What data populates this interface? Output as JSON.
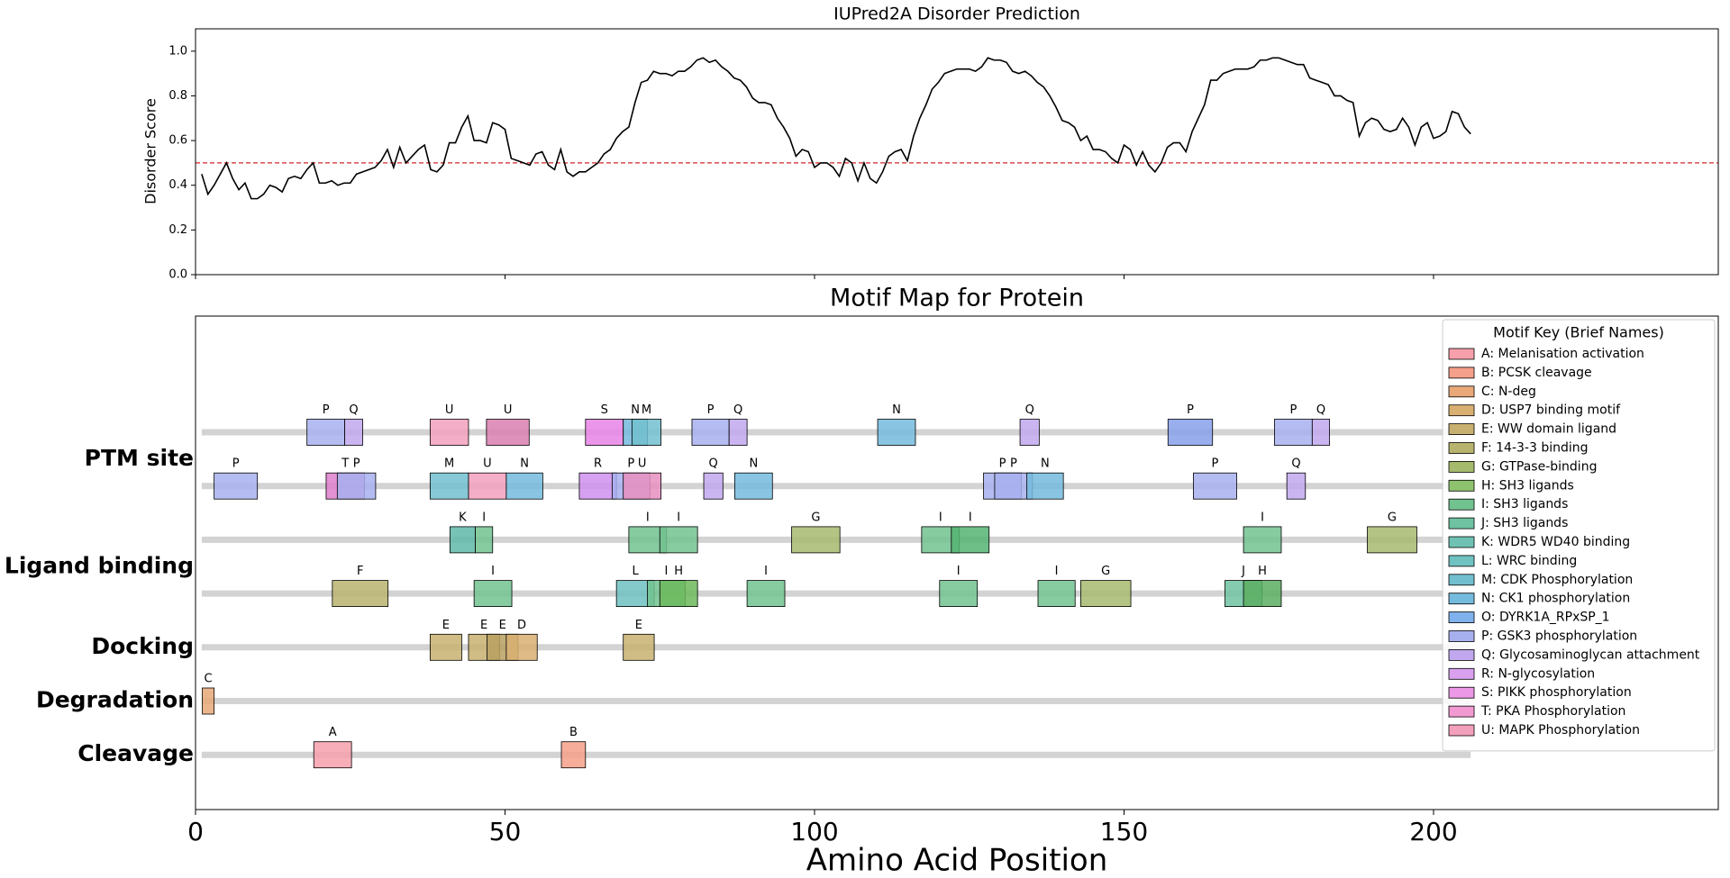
{
  "chart_data": [
    {
      "type": "line",
      "title": "IUPred2A Disorder Prediction",
      "y_label": "Disorder Score",
      "color": "#000000",
      "hline": 0.5,
      "hline_color": "#d62728",
      "xlim": [
        0,
        246
      ],
      "xticks": [
        0,
        50,
        100,
        150,
        200
      ],
      "ylim": [
        0,
        1.1
      ],
      "yticks": [
        {
          "value": 0,
          "label": "0.0"
        },
        {
          "value": 0.2,
          "label": "0.2"
        },
        {
          "value": 0.4,
          "label": "0.4"
        },
        {
          "value": 0.6,
          "label": "0.6"
        },
        {
          "value": 0.8,
          "label": "0.8"
        },
        {
          "value": 1,
          "label": "1.0"
        }
      ],
      "x": [
        1,
        2,
        3,
        4,
        5,
        6,
        7,
        8,
        9,
        10,
        11,
        12,
        13,
        14,
        15,
        16,
        17,
        18,
        19,
        20,
        21,
        22,
        23,
        24,
        25,
        26,
        27,
        28,
        29,
        30,
        31,
        32,
        33,
        34,
        35,
        36,
        37,
        38,
        39,
        40,
        41,
        42,
        43,
        44,
        45,
        46,
        47,
        48,
        49,
        50,
        51,
        52,
        53,
        54,
        55,
        56,
        57,
        58,
        59,
        60,
        61,
        62,
        63,
        64,
        65,
        66,
        67,
        68,
        69,
        70,
        71,
        72,
        73,
        74,
        75,
        76,
        77,
        78,
        79,
        80,
        81,
        82,
        83,
        84,
        85,
        86,
        87,
        88,
        89,
        90,
        91,
        92,
        93,
        94,
        95,
        96,
        97,
        98,
        99,
        100,
        101,
        102,
        103,
        104,
        105,
        106,
        107,
        108,
        109,
        110,
        111,
        112,
        113,
        114,
        115,
        116,
        117,
        118,
        119,
        120,
        121,
        122,
        123,
        124,
        125,
        126,
        127,
        128,
        129,
        130,
        131,
        132,
        133,
        134,
        135,
        136,
        137,
        138,
        139,
        140,
        141,
        142,
        143,
        144,
        145,
        146,
        147,
        148,
        149,
        150,
        151,
        152,
        153,
        154,
        155,
        156,
        157,
        158,
        159,
        160,
        161,
        162,
        163,
        164,
        165,
        166,
        167,
        168,
        169,
        170,
        171,
        172,
        173,
        174,
        175,
        176,
        177,
        178,
        179,
        180,
        181,
        182,
        183,
        184,
        185,
        186,
        187,
        188,
        189,
        190,
        191,
        192,
        193,
        194,
        195,
        196,
        197,
        198,
        199,
        200,
        201,
        202,
        203,
        204,
        205,
        206
      ],
      "values": [
        0.45,
        0.36,
        0.4,
        0.45,
        0.5,
        0.43,
        0.38,
        0.41,
        0.34,
        0.34,
        0.36,
        0.4,
        0.39,
        0.37,
        0.43,
        0.44,
        0.43,
        0.47,
        0.5,
        0.41,
        0.41,
        0.42,
        0.4,
        0.41,
        0.41,
        0.45,
        0.46,
        0.47,
        0.48,
        0.51,
        0.56,
        0.48,
        0.57,
        0.5,
        0.53,
        0.56,
        0.58,
        0.47,
        0.46,
        0.49,
        0.59,
        0.59,
        0.66,
        0.71,
        0.6,
        0.6,
        0.59,
        0.68,
        0.67,
        0.65,
        0.52,
        0.51,
        0.5,
        0.49,
        0.54,
        0.55,
        0.49,
        0.47,
        0.56,
        0.46,
        0.44,
        0.46,
        0.46,
        0.48,
        0.5,
        0.54,
        0.56,
        0.61,
        0.64,
        0.66,
        0.77,
        0.86,
        0.87,
        0.91,
        0.9,
        0.9,
        0.89,
        0.91,
        0.91,
        0.93,
        0.96,
        0.97,
        0.95,
        0.96,
        0.93,
        0.91,
        0.88,
        0.87,
        0.84,
        0.79,
        0.77,
        0.77,
        0.76,
        0.7,
        0.66,
        0.61,
        0.53,
        0.56,
        0.55,
        0.48,
        0.5,
        0.5,
        0.48,
        0.44,
        0.52,
        0.5,
        0.42,
        0.5,
        0.43,
        0.41,
        0.46,
        0.53,
        0.55,
        0.56,
        0.51,
        0.62,
        0.7,
        0.76,
        0.83,
        0.86,
        0.9,
        0.91,
        0.92,
        0.92,
        0.92,
        0.91,
        0.93,
        0.97,
        0.96,
        0.96,
        0.95,
        0.91,
        0.9,
        0.91,
        0.89,
        0.86,
        0.84,
        0.8,
        0.75,
        0.69,
        0.68,
        0.66,
        0.6,
        0.62,
        0.56,
        0.56,
        0.55,
        0.52,
        0.5,
        0.58,
        0.56,
        0.49,
        0.55,
        0.49,
        0.46,
        0.5,
        0.57,
        0.59,
        0.59,
        0.55,
        0.64,
        0.7,
        0.76,
        0.87,
        0.87,
        0.9,
        0.91,
        0.92,
        0.92,
        0.92,
        0.93,
        0.96,
        0.96,
        0.97,
        0.97,
        0.96,
        0.95,
        0.94,
        0.94,
        0.88,
        0.87,
        0.86,
        0.85,
        0.8,
        0.8,
        0.78,
        0.77,
        0.62,
        0.68,
        0.7,
        0.69,
        0.65,
        0.64,
        0.65,
        0.7,
        0.66,
        0.58,
        0.66,
        0.68,
        0.61,
        0.62,
        0.64,
        0.73,
        0.72,
        0.66,
        0.63
      ]
    },
    {
      "type": "motif_map",
      "title": "Motif Map for Protein",
      "x_label": "Amino Acid Position",
      "xlim": [
        0,
        246
      ],
      "xticks": [
        0,
        50,
        100,
        150,
        200
      ],
      "lane_color": "#d3d3d3",
      "tracks": [
        {
          "name": "PTM site",
          "lanes": 2
        },
        {
          "name": "Ligand binding",
          "lanes": 2
        },
        {
          "name": "Docking",
          "lanes": 1
        },
        {
          "name": "Degradation",
          "lanes": 1
        },
        {
          "name": "Cleavage",
          "lanes": 1
        }
      ],
      "motifs": [
        {
          "key": "P",
          "start": 18,
          "end": 24.1,
          "track": 0,
          "lane": 0,
          "color": "#a7b0ee"
        },
        {
          "key": "Q",
          "start": 24.1,
          "end": 27,
          "track": 0,
          "lane": 0,
          "color": "#c1a8ee"
        },
        {
          "key": "U",
          "start": 37.9,
          "end": 44.1,
          "track": 0,
          "lane": 0,
          "color": "#f3a0bd"
        },
        {
          "key": "U",
          "start": 47,
          "end": 53.9,
          "track": 0,
          "lane": 0,
          "color": "#d97fb0"
        },
        {
          "key": "S",
          "start": 63,
          "end": 69.1,
          "track": 0,
          "lane": 0,
          "color": "#e884e6"
        },
        {
          "key": "N",
          "start": 69.1,
          "end": 73,
          "track": 0,
          "lane": 0,
          "color": "#74bbdd"
        },
        {
          "key": "M",
          "start": 70.5,
          "end": 75.2,
          "track": 0,
          "lane": 0,
          "color": "#72bfcf"
        },
        {
          "key": "P",
          "start": 80.2,
          "end": 86.2,
          "track": 0,
          "lane": 0,
          "color": "#a7b0ee"
        },
        {
          "key": "Q",
          "start": 86.2,
          "end": 89.1,
          "track": 0,
          "lane": 0,
          "color": "#c1a8ee"
        },
        {
          "key": "N",
          "start": 110.2,
          "end": 116.3,
          "track": 0,
          "lane": 0,
          "color": "#74bbdd"
        },
        {
          "key": "Q",
          "start": 133.2,
          "end": 136.3,
          "track": 0,
          "lane": 0,
          "color": "#c1a8ee"
        },
        {
          "key": "P",
          "start": 157.1,
          "end": 164.3,
          "track": 0,
          "lane": 0,
          "color": "#86a0ea"
        },
        {
          "key": "P",
          "start": 174.3,
          "end": 180.4,
          "track": 0,
          "lane": 0,
          "color": "#a7b0ee"
        },
        {
          "key": "Q",
          "start": 180.4,
          "end": 183.2,
          "track": 0,
          "lane": 0,
          "color": "#c1a8ee"
        },
        {
          "key": "P",
          "start": 3,
          "end": 10,
          "track": 0,
          "lane": 1,
          "color": "#a7b0ee"
        },
        {
          "key": "T",
          "start": 21.1,
          "end": 27.3,
          "track": 0,
          "lane": 1,
          "color": "#de7fcc"
        },
        {
          "key": "P",
          "start": 22.9,
          "end": 29.1,
          "track": 0,
          "lane": 1,
          "color": "#a7b0ee"
        },
        {
          "key": "M",
          "start": 37.9,
          "end": 44.1,
          "track": 0,
          "lane": 1,
          "color": "#72bfcf"
        },
        {
          "key": "U",
          "start": 44.1,
          "end": 50.2,
          "track": 0,
          "lane": 1,
          "color": "#f3a0bd"
        },
        {
          "key": "N",
          "start": 50.2,
          "end": 56.1,
          "track": 0,
          "lane": 1,
          "color": "#74bbdd"
        },
        {
          "key": "R",
          "start": 62,
          "end": 68,
          "track": 0,
          "lane": 1,
          "color": "#d090ee"
        },
        {
          "key": "P",
          "start": 67.3,
          "end": 73.4,
          "track": 0,
          "lane": 1,
          "color": "#a7b0ee"
        },
        {
          "key": "U",
          "start": 69.1,
          "end": 75.2,
          "track": 0,
          "lane": 1,
          "color": "#e88fc0"
        },
        {
          "key": "Q",
          "start": 82.1,
          "end": 85.2,
          "track": 0,
          "lane": 1,
          "color": "#c1a8ee"
        },
        {
          "key": "N",
          "start": 87.1,
          "end": 93.2,
          "track": 0,
          "lane": 1,
          "color": "#74bbdd"
        },
        {
          "key": "P",
          "start": 127.3,
          "end": 133.4,
          "track": 0,
          "lane": 1,
          "color": "#a7b0ee"
        },
        {
          "key": "P",
          "start": 129.1,
          "end": 135.2,
          "track": 0,
          "lane": 1,
          "color": "#a7b0ee"
        },
        {
          "key": "N",
          "start": 134.3,
          "end": 140.2,
          "track": 0,
          "lane": 1,
          "color": "#74bbdd"
        },
        {
          "key": "P",
          "start": 161.2,
          "end": 168.2,
          "track": 0,
          "lane": 1,
          "color": "#a7b0ee"
        },
        {
          "key": "Q",
          "start": 176.3,
          "end": 179.3,
          "track": 0,
          "lane": 1,
          "color": "#c1a8ee"
        },
        {
          "key": "K",
          "start": 41.1,
          "end": 45.2,
          "track": 1,
          "lane": 0,
          "color": "#5fb8a8"
        },
        {
          "key": "I",
          "start": 45.2,
          "end": 48,
          "track": 1,
          "lane": 0,
          "color": "#72c28f"
        },
        {
          "key": "I",
          "start": 70,
          "end": 76.1,
          "track": 1,
          "lane": 0,
          "color": "#72c28f"
        },
        {
          "key": "I",
          "start": 75,
          "end": 81.1,
          "track": 1,
          "lane": 0,
          "color": "#72c28f"
        },
        {
          "key": "G",
          "start": 96.3,
          "end": 104.1,
          "track": 1,
          "lane": 0,
          "color": "#a6ba6e"
        },
        {
          "key": "I",
          "start": 117.3,
          "end": 123.4,
          "track": 1,
          "lane": 0,
          "color": "#72c28f"
        },
        {
          "key": "I",
          "start": 122.1,
          "end": 128.2,
          "track": 1,
          "lane": 0,
          "color": "#55b472"
        },
        {
          "key": "I",
          "start": 169.3,
          "end": 175.4,
          "track": 1,
          "lane": 0,
          "color": "#72c28f"
        },
        {
          "key": "G",
          "start": 189.3,
          "end": 197.3,
          "track": 1,
          "lane": 0,
          "color": "#a6ba6e"
        },
        {
          "key": "F",
          "start": 22.1,
          "end": 31.1,
          "track": 1,
          "lane": 1,
          "color": "#b8b36e"
        },
        {
          "key": "I",
          "start": 45,
          "end": 51.1,
          "track": 1,
          "lane": 1,
          "color": "#72c28f"
        },
        {
          "key": "L",
          "start": 68,
          "end": 74.1,
          "track": 1,
          "lane": 1,
          "color": "#70c1c1"
        },
        {
          "key": "I",
          "start": 73,
          "end": 79.1,
          "track": 1,
          "lane": 1,
          "color": "#72c28f"
        },
        {
          "key": "H",
          "start": 75,
          "end": 81.1,
          "track": 1,
          "lane": 1,
          "color": "#6cb85a"
        },
        {
          "key": "I",
          "start": 89.1,
          "end": 95.2,
          "track": 1,
          "lane": 1,
          "color": "#72c28f"
        },
        {
          "key": "I",
          "start": 120.2,
          "end": 126.3,
          "track": 1,
          "lane": 1,
          "color": "#72c28f"
        },
        {
          "key": "I",
          "start": 136.1,
          "end": 142.1,
          "track": 1,
          "lane": 1,
          "color": "#72c28f"
        },
        {
          "key": "G",
          "start": 143,
          "end": 151.1,
          "track": 1,
          "lane": 1,
          "color": "#a6ba6e"
        },
        {
          "key": "J",
          "start": 166.3,
          "end": 172.3,
          "track": 1,
          "lane": 1,
          "color": "#6fc2a2"
        },
        {
          "key": "H",
          "start": 169.3,
          "end": 175.4,
          "track": 1,
          "lane": 1,
          "color": "#5aae60"
        },
        {
          "key": "E",
          "start": 37.9,
          "end": 43,
          "track": 2,
          "lane": 0,
          "color": "#c8b070"
        },
        {
          "key": "E",
          "start": 44.1,
          "end": 49.1,
          "track": 2,
          "lane": 0,
          "color": "#c8b070"
        },
        {
          "key": "E",
          "start": 47.1,
          "end": 52.1,
          "track": 2,
          "lane": 0,
          "color": "#b8a060"
        },
        {
          "key": "D",
          "start": 50.2,
          "end": 55.2,
          "track": 2,
          "lane": 0,
          "color": "#d9b072"
        },
        {
          "key": "E",
          "start": 69.1,
          "end": 74.1,
          "track": 2,
          "lane": 0,
          "color": "#c8b070"
        },
        {
          "key": "C",
          "start": 1.1,
          "end": 3,
          "track": 3,
          "lane": 0,
          "color": "#e8a878"
        },
        {
          "key": "A",
          "start": 19.1,
          "end": 25.2,
          "track": 4,
          "lane": 0,
          "color": "#f7a0ab"
        },
        {
          "key": "B",
          "start": 59.1,
          "end": 63,
          "track": 4,
          "lane": 0,
          "color": "#f4a08a"
        }
      ],
      "legend": {
        "title": "Motif Key (Brief Names)",
        "corner": "upper right",
        "entries": [
          {
            "label": "A: Melanisation activation",
            "color": "#f7a0ab"
          },
          {
            "label": "B: PCSK cleavage",
            "color": "#f4a08a"
          },
          {
            "label": "C: N-deg",
            "color": "#e8a878"
          },
          {
            "label": "D: USP7 binding motif",
            "color": "#d9b072"
          },
          {
            "label": "E: WW domain ligand",
            "color": "#c8b070"
          },
          {
            "label": "F: 14-3-3 binding",
            "color": "#b8b36e"
          },
          {
            "label": "G: GTPase-binding",
            "color": "#a6ba6e"
          },
          {
            "label": "H: SH3 ligands",
            "color": "#8fc26e"
          },
          {
            "label": "I: SH3 ligands",
            "color": "#72c28f"
          },
          {
            "label": "J: SH3 ligands",
            "color": "#6fc2a2"
          },
          {
            "label": "K: WDR5 WD40 binding",
            "color": "#6fc2b3"
          },
          {
            "label": "L: WRC binding",
            "color": "#70c1c1"
          },
          {
            "label": "M: CDK Phosphorylation",
            "color": "#72bfcf"
          },
          {
            "label": "N: CK1 phosphorylation",
            "color": "#74bbdd"
          },
          {
            "label": "O: DYRK1A_RPxSP_1",
            "color": "#7fb2ec"
          },
          {
            "label": "P: GSK3 phosphorylation",
            "color": "#a7b0ee"
          },
          {
            "label": "Q: Glycosaminoglycan attachment",
            "color": "#c1a8ee"
          },
          {
            "label": "R: N-glycosylation",
            "color": "#d9a0ee"
          },
          {
            "label": "S: PIKK phosphorylation",
            "color": "#ec98e6"
          },
          {
            "label": "T: PKA Phosphorylation",
            "color": "#f29ad2"
          },
          {
            "label": "U: MAPK Phosphorylation",
            "color": "#f3a0bd"
          }
        ]
      }
    }
  ]
}
